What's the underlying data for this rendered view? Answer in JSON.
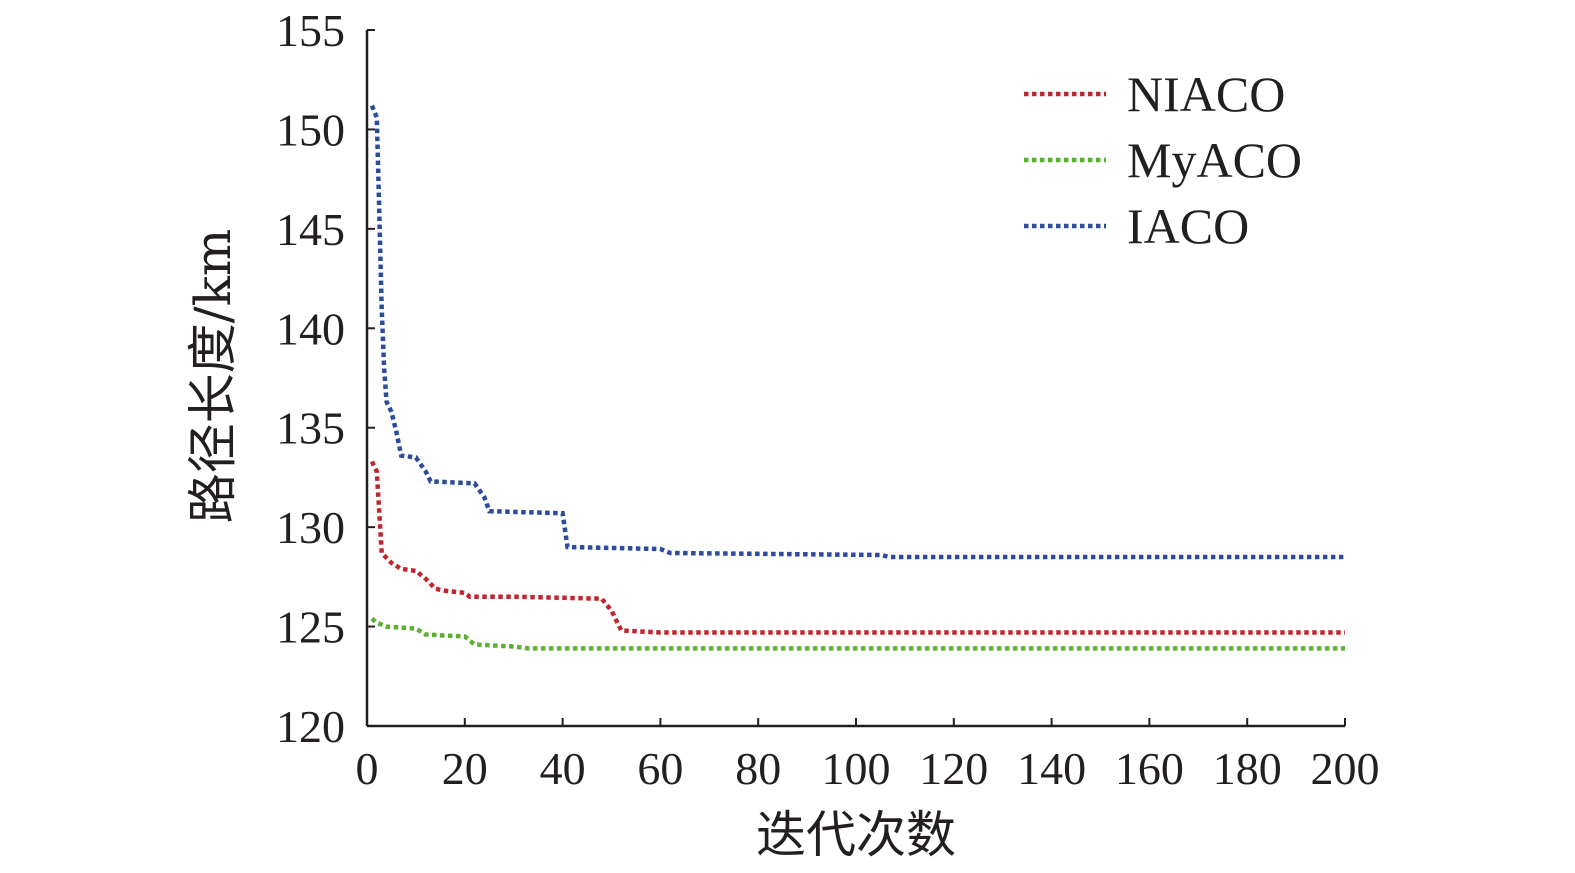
{
  "chart_data": {
    "type": "line",
    "title": "",
    "xlabel": "迭代次数",
    "ylabel": "路径长度/km",
    "xlim": [
      0,
      200
    ],
    "ylim": [
      120,
      155
    ],
    "xticks": [
      0,
      20,
      40,
      60,
      80,
      100,
      120,
      140,
      160,
      180,
      200
    ],
    "yticks": [
      120,
      125,
      130,
      135,
      140,
      145,
      150,
      155
    ],
    "grid": false,
    "legend_position": "top-right",
    "series": [
      {
        "name": "NIACO",
        "color": "#c0272d",
        "points": [
          [
            1,
            133.3
          ],
          [
            2,
            132.8
          ],
          [
            3,
            128.7
          ],
          [
            5,
            128.2
          ],
          [
            7,
            127.9
          ],
          [
            10,
            127.8
          ],
          [
            12,
            127.4
          ],
          [
            14,
            126.9
          ],
          [
            16,
            126.8
          ],
          [
            20,
            126.7
          ],
          [
            21,
            126.5
          ],
          [
            30,
            126.5
          ],
          [
            48,
            126.4
          ],
          [
            50,
            125.8
          ],
          [
            52,
            124.8
          ],
          [
            60,
            124.7
          ],
          [
            200,
            124.7
          ]
        ]
      },
      {
        "name": "MyACO",
        "color": "#5ab030",
        "points": [
          [
            1,
            125.4
          ],
          [
            2,
            125.2
          ],
          [
            4,
            125.0
          ],
          [
            10,
            124.9
          ],
          [
            12,
            124.6
          ],
          [
            20,
            124.5
          ],
          [
            22,
            124.1
          ],
          [
            30,
            124.0
          ],
          [
            33,
            123.9
          ],
          [
            200,
            123.9
          ]
        ]
      },
      {
        "name": "IACO",
        "color": "#2e4a9b",
        "points": [
          [
            1,
            151.2
          ],
          [
            2,
            150.6
          ],
          [
            2.5,
            146.0
          ],
          [
            3,
            141.0
          ],
          [
            3.5,
            138.0
          ],
          [
            4,
            136.3
          ],
          [
            5,
            135.8
          ],
          [
            6,
            134.8
          ],
          [
            7,
            133.6
          ],
          [
            10,
            133.5
          ],
          [
            12,
            132.8
          ],
          [
            13,
            132.3
          ],
          [
            22,
            132.2
          ],
          [
            24,
            131.5
          ],
          [
            25,
            130.8
          ],
          [
            40,
            130.7
          ],
          [
            41,
            129.0
          ],
          [
            60,
            128.9
          ],
          [
            62,
            128.7
          ],
          [
            105,
            128.6
          ],
          [
            107,
            128.5
          ],
          [
            200,
            128.5
          ]
        ]
      }
    ]
  }
}
